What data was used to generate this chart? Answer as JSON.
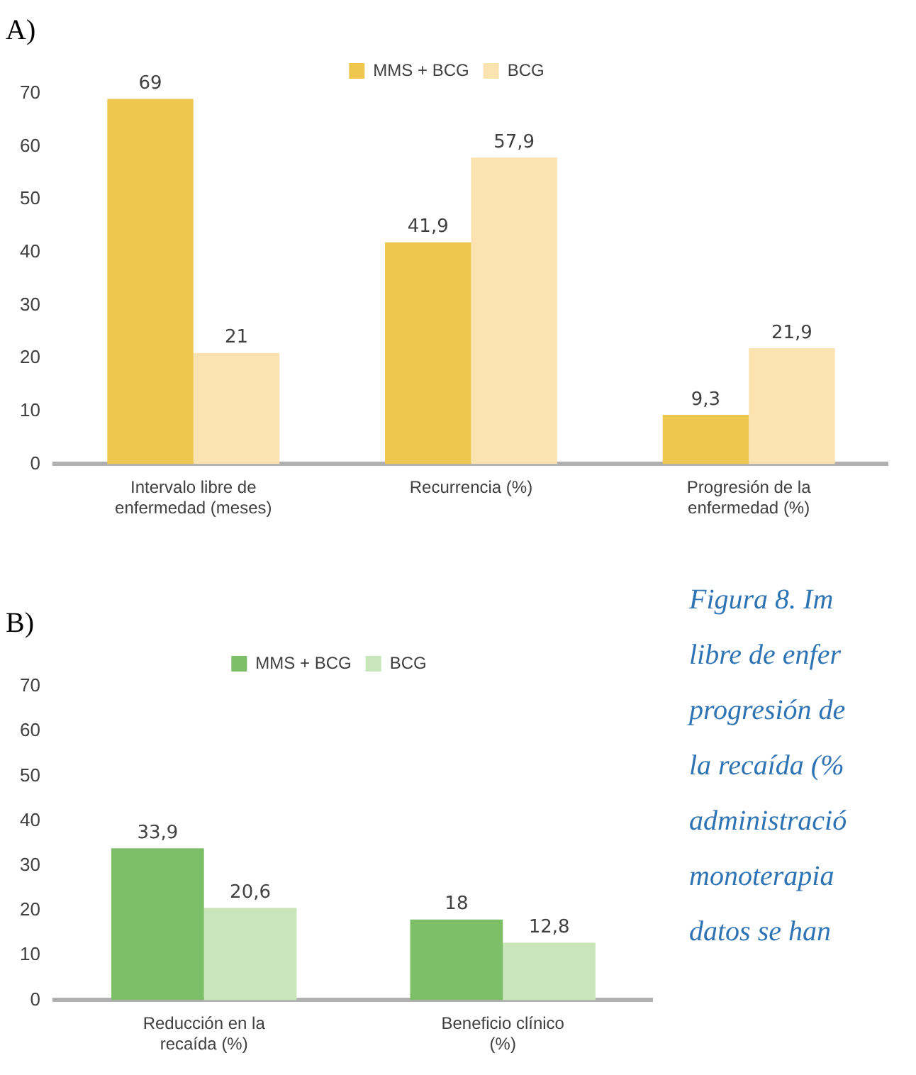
{
  "chart_data": [
    {
      "type": "bar",
      "title": "A)",
      "categories": [
        "Intervalo libre de enfermedad (meses)",
        "Recurrencia (%)",
        "Progresión de la enfermedad (%)"
      ],
      "series": [
        {
          "name": "MMS + BCG",
          "color": "#eec84e",
          "values": [
            69,
            41.9,
            9.3
          ],
          "value_labels": [
            "69",
            "41,9",
            "9,3"
          ]
        },
        {
          "name": "BCG",
          "color": "#fae3b0",
          "values": [
            21,
            57.9,
            21.9
          ],
          "value_labels": [
            "21",
            "57,9",
            "21,9"
          ]
        }
      ],
      "ylim": [
        0,
        70
      ],
      "yticks": [
        0,
        10,
        20,
        30,
        40,
        50,
        60,
        70
      ],
      "grid": false,
      "legend": "top"
    },
    {
      "type": "bar",
      "title": "B)",
      "categories": [
        "Reducción en la recaída (%)",
        "Beneficio clínico (%)"
      ],
      "series": [
        {
          "name": "MMS + BCG",
          "color": "#7cbf68",
          "values": [
            33.9,
            18
          ],
          "value_labels": [
            "33,9",
            "18"
          ]
        },
        {
          "name": "BCG",
          "color": "#c8e6b9",
          "values": [
            20.6,
            12.8
          ],
          "value_labels": [
            "20,6",
            "12,8"
          ]
        }
      ],
      "ylim": [
        0,
        70
      ],
      "yticks": [
        0,
        10,
        20,
        30,
        40,
        50,
        60,
        70
      ],
      "grid": false,
      "legend": "top",
      "annotations": [
        "Figura 8. Im",
        "libre de enfer",
        "progresión de",
        "la recaída (%",
        "administració",
        "monoterapia",
        "datos se han"
      ]
    }
  ]
}
